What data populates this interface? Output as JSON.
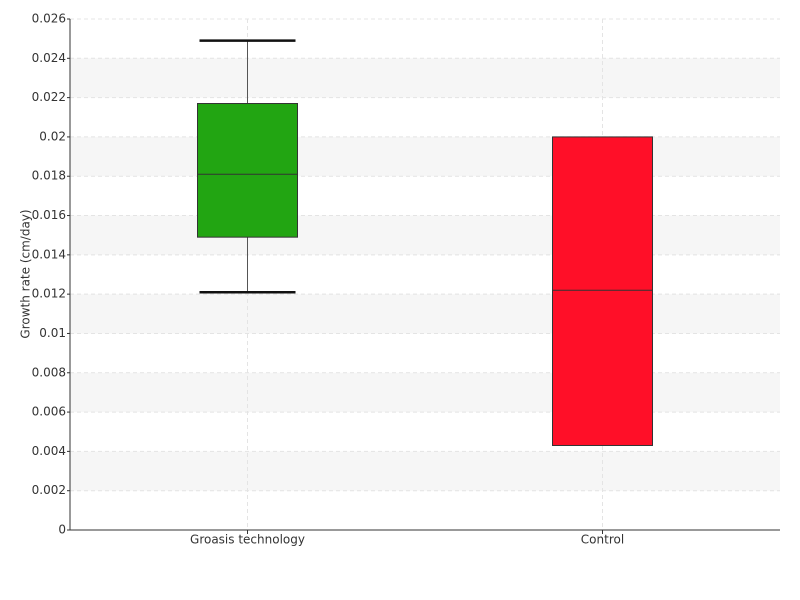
{
  "chart_data": {
    "type": "box",
    "y_label": "Growth rate (cm/day)",
    "categories": [
      "Groasis technology",
      "Control"
    ],
    "boxes": [
      {
        "min": 0.0121,
        "q1": 0.0149,
        "median": 0.0181,
        "q3": 0.0217,
        "max": 0.0249,
        "color": "#22a512"
      },
      {
        "min": 0.0043,
        "q1": 0.0043,
        "median": 0.0122,
        "q3": 0.02,
        "max": 0.02,
        "color": "#ff0f28"
      }
    ],
    "ylim": [
      0,
      0.026
    ],
    "yticks": [
      0,
      0.002,
      0.004,
      0.006,
      0.008,
      0.01,
      0.012,
      0.014,
      0.016,
      0.018,
      0.02,
      0.022,
      0.024,
      0.026
    ],
    "grid": true
  }
}
